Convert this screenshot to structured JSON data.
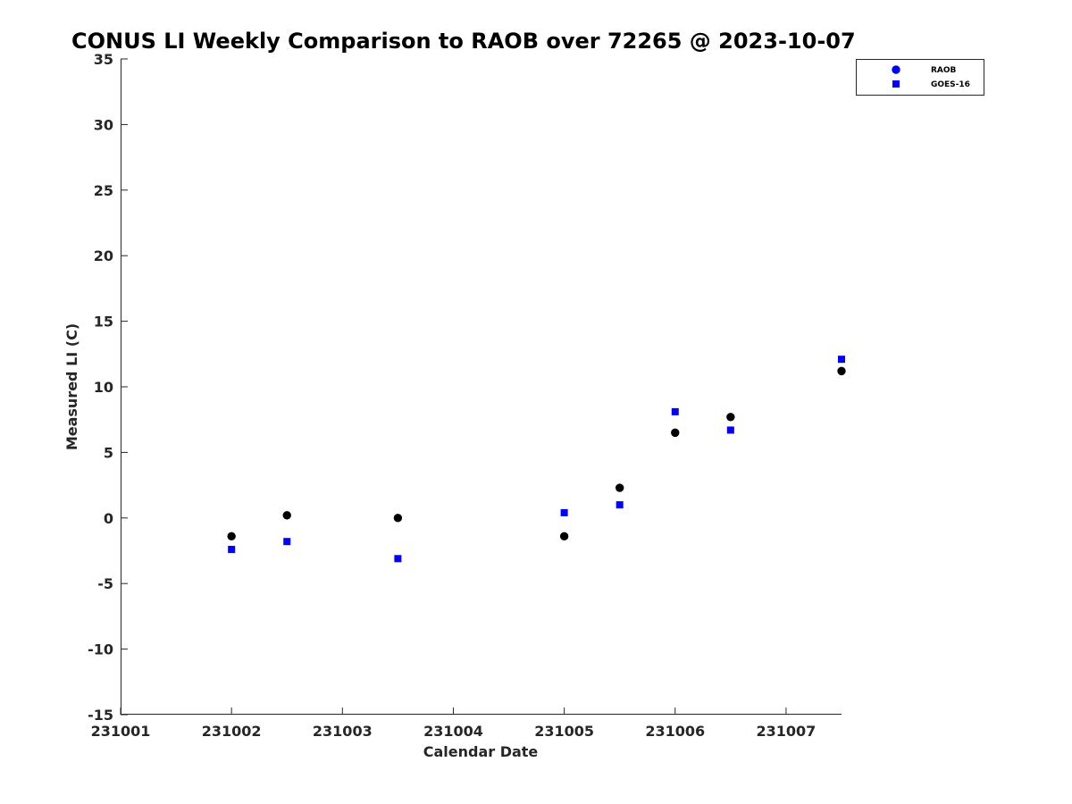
{
  "chart_data": {
    "type": "scatter",
    "title": "CONUS LI Weekly Comparison to RAOB over 72265 @ 2023-10-07",
    "xlabel": "Calendar Date",
    "ylabel": "Measured LI (C)",
    "xlim": [
      1,
      7.5
    ],
    "ylim": [
      -15,
      35
    ],
    "xticks": [
      1,
      2,
      3,
      4,
      5,
      6,
      7
    ],
    "xtick_labels": [
      "231001",
      "231002",
      "231003",
      "231004",
      "231005",
      "231006",
      "231007"
    ],
    "yticks": [
      35,
      30,
      25,
      20,
      15,
      10,
      5,
      0,
      -5,
      -10,
      -15
    ],
    "grid": false,
    "legend_position": "top-right",
    "series": [
      {
        "name": "RAOB",
        "marker": "circle",
        "color": "#000000",
        "legend_color": "#0000ff",
        "x": [
          2,
          2.5,
          3.5,
          5,
          5.5,
          6,
          6.5,
          7.5
        ],
        "y": [
          -1.4,
          0.2,
          0.0,
          -1.4,
          2.3,
          6.5,
          7.7,
          11.2
        ]
      },
      {
        "name": "GOES-16",
        "marker": "square",
        "color": "#0000ff",
        "legend_color": "#0000ff",
        "x": [
          2,
          2.5,
          3.5,
          5,
          5.5,
          6,
          6.5,
          7.5
        ],
        "y": [
          -2.4,
          -1.8,
          -3.1,
          0.4,
          1.0,
          8.1,
          6.7,
          12.1
        ]
      }
    ]
  }
}
